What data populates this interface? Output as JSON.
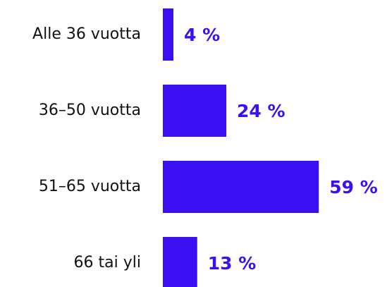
{
  "chart_data": {
    "type": "hbar",
    "categories": [
      "Alle 36 vuotta",
      "36–50 vuotta",
      "51–65 vuotta",
      "66 tai yli"
    ],
    "values": [
      4,
      24,
      59,
      13
    ],
    "value_labels": [
      "4 %",
      "24 %",
      "59 %",
      "13 %"
    ],
    "color": "#3a0ff2"
  }
}
